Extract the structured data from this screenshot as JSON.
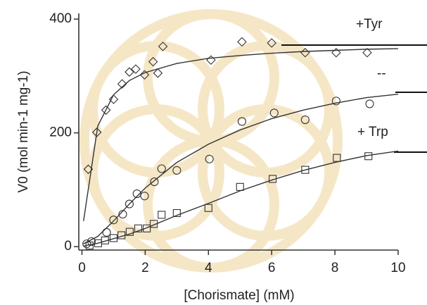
{
  "chart_data": {
    "type": "scatter",
    "xlabel": "[Chorismate] (mM)",
    "ylabel": "V0 (mol min-1 mg-1)",
    "xlim": [
      -0.1,
      10
    ],
    "ylim": [
      -6,
      410
    ],
    "xticks": [
      0,
      2,
      4,
      6,
      8,
      10
    ],
    "yticks": [
      0,
      200,
      400
    ],
    "series": [
      {
        "name": "+Tyr",
        "marker": "diamond",
        "color": "#333333",
        "x": [
          0.2,
          0.47,
          0.76,
          1.0,
          1.27,
          1.5,
          1.7,
          1.98,
          2.25,
          2.4,
          2.56,
          4.08,
          5.06,
          6.0,
          7.06,
          8.04,
          9.02
        ],
        "values": [
          136,
          201,
          240,
          259,
          286,
          307,
          312,
          302,
          325,
          305,
          352,
          328,
          360,
          358,
          341,
          341,
          341
        ],
        "fit_x": [
          0.05,
          0.5,
          1,
          1.5,
          2,
          3,
          4,
          5,
          6,
          7,
          8,
          9,
          10
        ],
        "fit_values": [
          45,
          212,
          267,
          292,
          306,
          322,
          331,
          336,
          340,
          343,
          345,
          347,
          348
        ]
      },
      {
        "name": "--",
        "marker": "circle",
        "color": "#333333",
        "x": [
          0.15,
          0.3,
          0.78,
          1.0,
          1.29,
          1.5,
          1.74,
          1.98,
          2.29,
          2.52,
          3.0,
          4.03,
          5.06,
          6.08,
          7.06,
          8.04,
          9.1
        ],
        "values": [
          5,
          9,
          25,
          47,
          57,
          75,
          93,
          89,
          114,
          137,
          134,
          154,
          220,
          235,
          223,
          256,
          251
        ],
        "fit_x": [
          0.05,
          0.5,
          1,
          1.5,
          2,
          3,
          4,
          5,
          6,
          7,
          8,
          9,
          10
        ],
        "fit_values": [
          5,
          18,
          45,
          75,
          103,
          148,
          180,
          205,
          225,
          240,
          252,
          262,
          268
        ]
      },
      {
        "name": "+ Trp",
        "marker": "square",
        "color": "#333333",
        "x": [
          0.24,
          0.51,
          0.73,
          1.0,
          1.25,
          1.51,
          1.78,
          2.05,
          2.27,
          2.52,
          3.0,
          4.0,
          5.0,
          6.03,
          7.06,
          8.06,
          9.06
        ],
        "values": [
          2,
          6,
          11,
          15,
          20,
          26,
          32,
          32,
          40,
          56,
          59,
          68,
          105,
          119,
          135,
          156,
          159
        ],
        "fit_x": [
          0.05,
          0.5,
          1,
          1.5,
          2,
          3,
          4,
          5,
          6,
          7,
          8,
          9,
          10
        ],
        "fit_values": [
          1,
          6,
          14,
          22,
          32,
          55,
          76,
          98,
          117,
          134,
          148,
          160,
          168
        ]
      }
    ]
  }
}
